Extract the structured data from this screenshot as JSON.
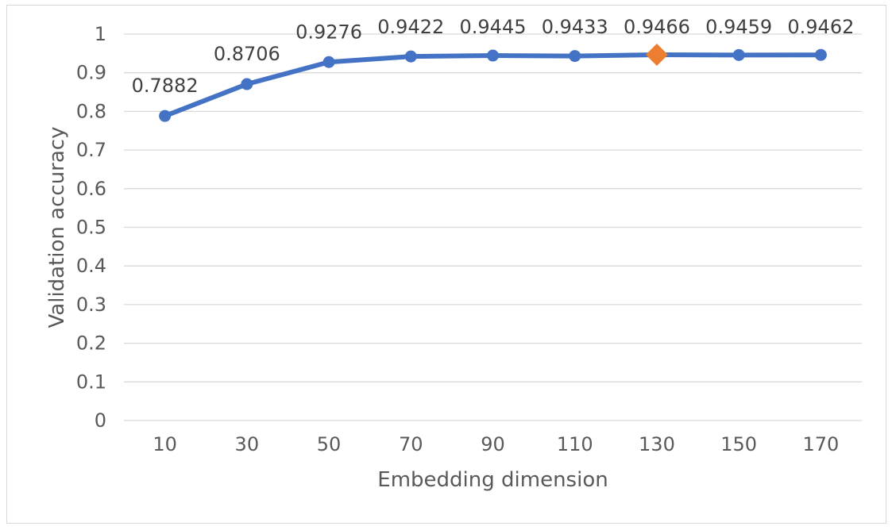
{
  "chart_data": {
    "type": "line",
    "title": "",
    "xlabel": "Embedding dimension",
    "ylabel": "Validation accuracy",
    "categories": [
      "10",
      "30",
      "50",
      "70",
      "90",
      "110",
      "130",
      "150",
      "170"
    ],
    "series": [
      {
        "values": [
          0.7882,
          0.8706,
          0.9276,
          0.9422,
          0.9445,
          0.9433,
          0.9466,
          0.9459,
          0.9462
        ],
        "color": "#4472C4"
      }
    ],
    "data_labels": [
      "0.7882",
      "0.8706",
      "0.9276",
      "0.9422",
      "0.9445",
      "0.9433",
      "0.9466",
      "0.9459",
      "0.9462"
    ],
    "highlight": {
      "index": 6,
      "marker": "diamond",
      "color": "#ED7D31"
    },
    "yticks": [
      "0",
      "0.1",
      "0.2",
      "0.3",
      "0.4",
      "0.5",
      "0.6",
      "0.7",
      "0.8",
      "0.9",
      "1"
    ],
    "ylim": [
      0,
      1
    ],
    "grid": true,
    "legend": "none"
  }
}
